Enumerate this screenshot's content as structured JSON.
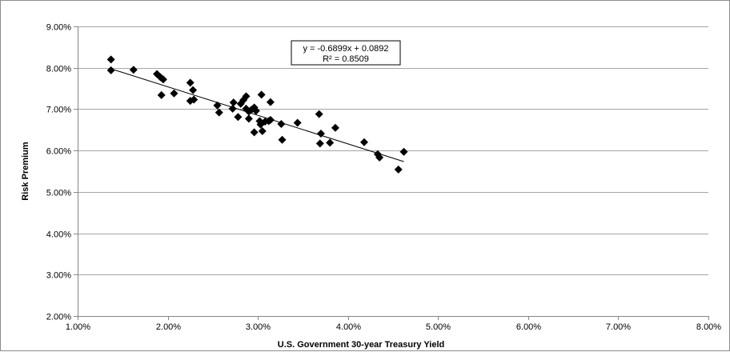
{
  "chart_data": {
    "type": "scatter",
    "title": "",
    "xlabel": "U.S. Government 30-year Treasury Yield",
    "ylabel": "Risk Premium",
    "xlim": [
      0.01,
      0.08
    ],
    "ylim": [
      0.02,
      0.09
    ],
    "x_ticks": [
      0.01,
      0.02,
      0.03,
      0.04,
      0.05,
      0.06,
      0.07,
      0.08
    ],
    "y_ticks": [
      0.02,
      0.03,
      0.04,
      0.05,
      0.06,
      0.07,
      0.08,
      0.09
    ],
    "x_tick_labels": [
      "1.00%",
      "2.00%",
      "3.00%",
      "4.00%",
      "5.00%",
      "6.00%",
      "7.00%",
      "8.00%"
    ],
    "y_tick_labels": [
      "2.00%",
      "3.00%",
      "4.00%",
      "5.00%",
      "6.00%",
      "7.00%",
      "8.00%",
      "9.00%"
    ],
    "grid": "horizontal",
    "marker": "diamond",
    "marker_color": "#000000",
    "series": [
      {
        "points": [
          [
            0.0137,
            0.082
          ],
          [
            0.0137,
            0.0794
          ],
          [
            0.0162,
            0.0795
          ],
          [
            0.0188,
            0.0785
          ],
          [
            0.0192,
            0.0777
          ],
          [
            0.0195,
            0.0772
          ],
          [
            0.0193,
            0.0734
          ],
          [
            0.0207,
            0.0738
          ],
          [
            0.0225,
            0.0764
          ],
          [
            0.0228,
            0.0746
          ],
          [
            0.0225,
            0.072
          ],
          [
            0.0229,
            0.0723
          ],
          [
            0.0255,
            0.0709
          ],
          [
            0.0257,
            0.0692
          ],
          [
            0.0272,
            0.0701
          ],
          [
            0.0273,
            0.0716
          ],
          [
            0.0278,
            0.0681
          ],
          [
            0.0281,
            0.0713
          ],
          [
            0.0284,
            0.0722
          ],
          [
            0.0287,
            0.0731
          ],
          [
            0.0287,
            0.0701
          ],
          [
            0.029,
            0.0694
          ],
          [
            0.029,
            0.0677
          ],
          [
            0.0293,
            0.0699
          ],
          [
            0.0296,
            0.0704
          ],
          [
            0.0298,
            0.0696
          ],
          [
            0.0296,
            0.0644
          ],
          [
            0.0302,
            0.0671
          ],
          [
            0.0303,
            0.0663
          ],
          [
            0.0304,
            0.0735
          ],
          [
            0.0305,
            0.0647
          ],
          [
            0.0308,
            0.067
          ],
          [
            0.0312,
            0.0671
          ],
          [
            0.0314,
            0.0674
          ],
          [
            0.0314,
            0.0717
          ],
          [
            0.0326,
            0.0664
          ],
          [
            0.0327,
            0.0626
          ],
          [
            0.0344,
            0.0667
          ],
          [
            0.0368,
            0.0688
          ],
          [
            0.037,
            0.0641
          ],
          [
            0.0369,
            0.0617
          ],
          [
            0.038,
            0.0619
          ],
          [
            0.0386,
            0.0655
          ],
          [
            0.0418,
            0.062
          ],
          [
            0.0433,
            0.0591
          ],
          [
            0.0435,
            0.0583
          ],
          [
            0.0456,
            0.0554
          ],
          [
            0.0462,
            0.0597
          ]
        ]
      }
    ],
    "trendline": {
      "slope": -0.6899,
      "intercept": 0.0892,
      "x_range": [
        0.0137,
        0.0462
      ],
      "equation": "y = -0.6899x + 0.0892",
      "r_squared": "R² = 0.8509"
    }
  }
}
